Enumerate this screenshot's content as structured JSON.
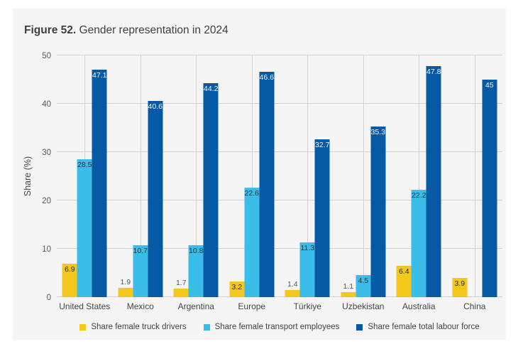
{
  "title": {
    "prefix": "Figure 52.",
    "caption": " Gender representation in 2024"
  },
  "chart_data": {
    "type": "bar",
    "title": "Figure 52. Gender representation in 2024",
    "ylabel": "Share (%)",
    "xlabel": "",
    "ylim": [
      0,
      50
    ],
    "yticks": [
      0,
      10,
      20,
      30,
      40,
      50
    ],
    "grid": true,
    "legend_position": "bottom",
    "categories": [
      "United States",
      "Mexico",
      "Argentina",
      "Europe",
      "Türkiye",
      "Uzbekistan",
      "Australia",
      "China"
    ],
    "series": [
      {
        "name": "Share female truck drivers",
        "color": "#f3c71b",
        "values": [
          6.9,
          1.9,
          1.7,
          3.2,
          1.4,
          1.1,
          6.4,
          3.9
        ],
        "labels": [
          "6.9",
          "1.9",
          "1.7",
          "3.2",
          "1.4",
          "1.1",
          "6.4",
          "3.9"
        ],
        "label_color": "#2b2f33"
      },
      {
        "name": "Share female transport employees",
        "color": "#3abde8",
        "values": [
          28.5,
          10.7,
          10.8,
          22.6,
          11.3,
          4.5,
          22.2,
          null
        ],
        "labels": [
          "28.5",
          "10.7",
          "10.8",
          "22.6",
          "11.3",
          "4.5",
          "22.2",
          null
        ],
        "label_color": "#2b2f33"
      },
      {
        "name": "Share female total labour force",
        "color": "#0659a5",
        "values": [
          47.1,
          40.6,
          44.2,
          46.6,
          32.7,
          35.3,
          47.8,
          45
        ],
        "labels": [
          "47.1",
          "40.6",
          "44.2",
          "46.6",
          "32.7",
          "35.3",
          "47.8",
          "45"
        ],
        "label_color": "#f2f6fa"
      }
    ]
  }
}
